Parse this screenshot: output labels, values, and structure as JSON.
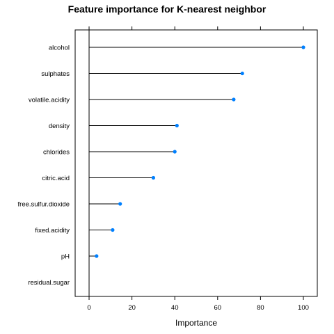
{
  "chart_data": {
    "type": "dotplot",
    "title": "Feature importance for K-nearest neighbor",
    "xlabel": "Importance",
    "ylabel": "",
    "xlim": [
      -6.5,
      106.5
    ],
    "xticks": [
      0,
      20,
      40,
      60,
      80,
      100
    ],
    "categories": [
      "alcohol",
      "sulphates",
      "volatile.acidity",
      "density",
      "chlorides",
      "citric.acid",
      "free.sulfur.dioxide",
      "fixed.acidity",
      "pH",
      "residual.sugar"
    ],
    "values": [
      100,
      71.5,
      67.5,
      41,
      40,
      30,
      14.5,
      11,
      3.5,
      0
    ],
    "point_color": "#0080ff",
    "line_color": "#000000",
    "grid": false
  }
}
